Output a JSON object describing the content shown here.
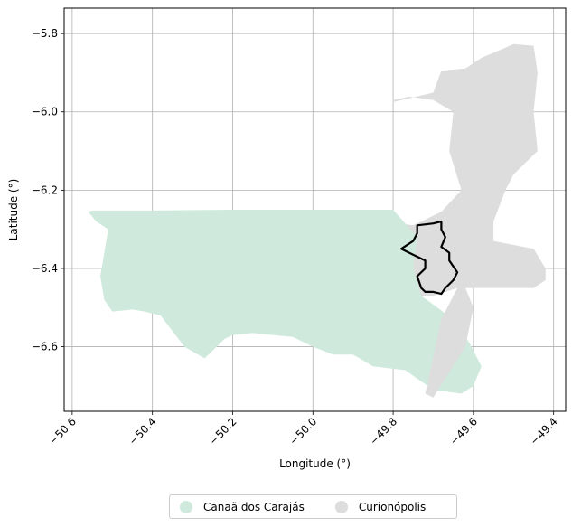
{
  "chart_data": {
    "type": "map",
    "xlabel": "Longitude (°)",
    "ylabel": "Latitude (°)",
    "xlim": [
      -50.62,
      -49.37
    ],
    "ylim": [
      -6.765,
      -5.735
    ],
    "xticks": [
      -50.6,
      -50.4,
      -50.2,
      -50.0,
      -49.8,
      -49.6,
      -49.4
    ],
    "xtick_labels": [
      "−50.6",
      "−50.4",
      "−50.2",
      "−50.0",
      "−49.8",
      "−49.6",
      "−49.4"
    ],
    "yticks": [
      -5.8,
      -6.0,
      -6.2,
      -6.4,
      -6.6
    ],
    "ytick_labels": [
      "−5.8",
      "−6.0",
      "−6.2",
      "−6.4",
      "−6.6"
    ],
    "grid": true,
    "legend_placement": "bottom-center",
    "legend": [
      {
        "label": "Canaã dos Carajás",
        "color": "#cfeadc"
      },
      {
        "label": "Curionópolis",
        "color": "#dddddd"
      }
    ],
    "regions": [
      {
        "name": "Curionópolis",
        "color": "#dddddd",
        "coords": [
          [
            -49.8,
            -5.975
          ],
          [
            -49.7,
            -5.951
          ],
          [
            -49.68,
            -5.895
          ],
          [
            -49.62,
            -5.889
          ],
          [
            -49.58,
            -5.862
          ],
          [
            -49.55,
            -5.849
          ],
          [
            -49.5,
            -5.827
          ],
          [
            -49.45,
            -5.831
          ],
          [
            -49.44,
            -5.9
          ],
          [
            -49.45,
            -6.0
          ],
          [
            -49.44,
            -6.1
          ],
          [
            -49.5,
            -6.16
          ],
          [
            -49.52,
            -6.2
          ],
          [
            -49.55,
            -6.28
          ],
          [
            -49.58,
            -6.33
          ],
          [
            -49.6,
            -6.35
          ],
          [
            -49.6,
            -6.4
          ],
          [
            -49.6,
            -6.45
          ],
          [
            -49.64,
            -6.45
          ],
          [
            -49.7,
            -6.47
          ],
          [
            -49.75,
            -6.47
          ],
          [
            -49.79,
            -6.45
          ],
          [
            -49.82,
            -6.28
          ],
          [
            -49.75,
            -6.29
          ],
          [
            -49.68,
            -6.255
          ],
          [
            -49.63,
            -6.2
          ],
          [
            -49.66,
            -6.1
          ],
          [
            -49.65,
            -6.0
          ],
          [
            -49.7,
            -5.97
          ],
          [
            -49.76,
            -5.961
          ],
          [
            -49.8,
            -5.97
          ]
        ]
      },
      {
        "name": "Canaã dos Carajás",
        "color": "#cfeadc",
        "coords": [
          [
            -50.55,
            -6.252
          ],
          [
            -50.4,
            -6.252
          ],
          [
            -50.2,
            -6.25
          ],
          [
            -50.0,
            -6.25
          ],
          [
            -49.8,
            -6.25
          ],
          [
            -49.74,
            -6.32
          ],
          [
            -49.75,
            -6.4
          ],
          [
            -49.73,
            -6.47
          ],
          [
            -49.65,
            -6.53
          ],
          [
            -49.61,
            -6.59
          ],
          [
            -49.58,
            -6.65
          ],
          [
            -49.6,
            -6.7
          ],
          [
            -49.63,
            -6.72
          ],
          [
            -49.7,
            -6.71
          ],
          [
            -49.77,
            -6.66
          ],
          [
            -49.85,
            -6.65
          ],
          [
            -49.9,
            -6.62
          ],
          [
            -49.95,
            -6.62
          ],
          [
            -50.0,
            -6.6
          ],
          [
            -50.05,
            -6.575
          ],
          [
            -50.1,
            -6.57
          ],
          [
            -50.15,
            -6.565
          ],
          [
            -50.2,
            -6.57
          ],
          [
            -50.22,
            -6.58
          ],
          [
            -50.25,
            -6.61
          ],
          [
            -50.27,
            -6.63
          ],
          [
            -50.32,
            -6.6
          ],
          [
            -50.35,
            -6.56
          ],
          [
            -50.38,
            -6.52
          ],
          [
            -50.42,
            -6.51
          ],
          [
            -50.45,
            -6.505
          ],
          [
            -50.5,
            -6.51
          ],
          [
            -50.52,
            -6.48
          ],
          [
            -50.53,
            -6.42
          ],
          [
            -50.52,
            -6.36
          ],
          [
            -50.51,
            -6.3
          ],
          [
            -50.54,
            -6.28
          ],
          [
            -50.56,
            -6.255
          ]
        ]
      },
      {
        "name": "Curionópolis (south wedge)",
        "color": "#dddddd",
        "coords": [
          [
            -49.62,
            -6.45
          ],
          [
            -49.6,
            -6.45
          ],
          [
            -49.45,
            -6.45
          ],
          [
            -49.42,
            -6.43
          ],
          [
            -49.42,
            -6.4
          ],
          [
            -49.45,
            -6.35
          ],
          [
            -49.55,
            -6.33
          ],
          [
            -49.55,
            -6.28
          ],
          [
            -49.6,
            -6.3
          ],
          [
            -49.64,
            -6.45
          ],
          [
            -49.68,
            -6.53
          ],
          [
            -49.72,
            -6.72
          ],
          [
            -49.7,
            -6.73
          ],
          [
            -49.62,
            -6.6
          ],
          [
            -49.6,
            -6.5
          ]
        ]
      }
    ],
    "outline": {
      "name": "highlighted boundary",
      "color": "#000000",
      "coords": [
        [
          -49.74,
          -6.29
        ],
        [
          -49.7,
          -6.285
        ],
        [
          -49.68,
          -6.28
        ],
        [
          -49.68,
          -6.3
        ],
        [
          -49.67,
          -6.32
        ],
        [
          -49.68,
          -6.345
        ],
        [
          -49.66,
          -6.36
        ],
        [
          -49.66,
          -6.38
        ],
        [
          -49.64,
          -6.41
        ],
        [
          -49.65,
          -6.43
        ],
        [
          -49.67,
          -6.45
        ],
        [
          -49.68,
          -6.465
        ],
        [
          -49.7,
          -6.46
        ],
        [
          -49.72,
          -6.46
        ],
        [
          -49.73,
          -6.45
        ],
        [
          -49.74,
          -6.42
        ],
        [
          -49.72,
          -6.4
        ],
        [
          -49.72,
          -6.38
        ],
        [
          -49.76,
          -6.36
        ],
        [
          -49.78,
          -6.35
        ],
        [
          -49.75,
          -6.33
        ],
        [
          -49.74,
          -6.31
        ]
      ]
    }
  }
}
